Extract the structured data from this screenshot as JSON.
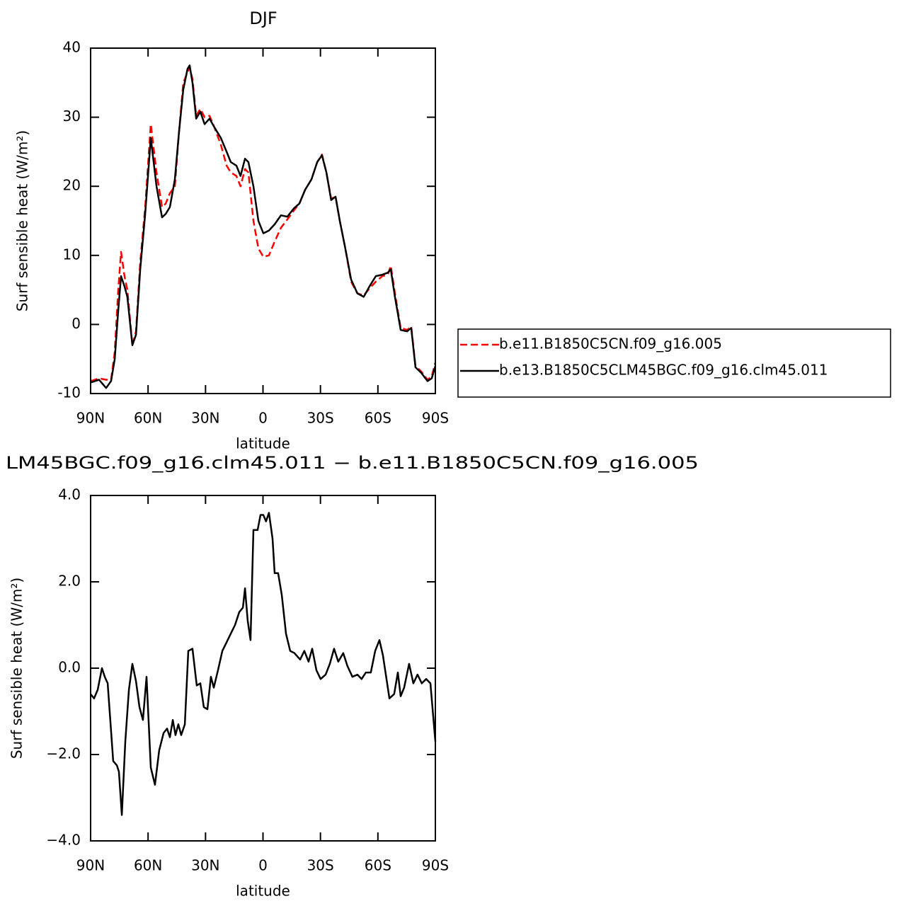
{
  "chart_data": [
    {
      "type": "line",
      "title": "DJF",
      "x_label": "latitude",
      "y_label": "Surf sensible heat (W/m²)",
      "x": [
        90,
        85.6,
        81.9,
        79.3,
        77.4,
        75.6,
        74.1,
        72.3,
        70.8,
        68.2,
        66.3,
        64.1,
        61.5,
        58.6,
        55.6,
        52.7,
        50.8,
        48.6,
        46,
        43.8,
        41.6,
        39.4,
        38.3,
        36.8,
        34.9,
        32.7,
        30.5,
        27.9,
        25.3,
        22,
        19,
        16.8,
        13.9,
        11.7,
        9.4,
        7.6,
        5,
        2.4,
        -0.2,
        -3.1,
        -6.1,
        -9.4,
        -12.7,
        -16.1,
        -19,
        -22,
        -25.3,
        -28.3,
        -30.8,
        -33.1,
        -35.6,
        -37.9,
        -40.1,
        -43,
        -46,
        -49.3,
        -52.6,
        -55.6,
        -58.9,
        -62.3,
        -65.2,
        -66.7,
        -68.9,
        -71.9,
        -75.2,
        -77.4,
        -79.6,
        -82.6,
        -85.9,
        -88.1,
        -90
      ],
      "xlim": [
        90,
        -90
      ],
      "xticks": [
        {
          "value": 90,
          "label": "90N"
        },
        {
          "value": 60,
          "label": "60N"
        },
        {
          "value": 30,
          "label": "30N"
        },
        0,
        {
          "value": -30,
          "label": "30S"
        },
        {
          "value": -60,
          "label": "60S"
        },
        {
          "value": -90,
          "label": "90S"
        }
      ],
      "ylim": [
        -10,
        40
      ],
      "yticks": [
        -10,
        0,
        10,
        20,
        30,
        40
      ],
      "legend": "right",
      "series": [
        {
          "name": "b.e11.B1850C5CN.f09_g16.005",
          "color": "#ff0000",
          "line_style": "dashed",
          "values": [
            -8.2,
            -7.8,
            -8.0,
            -8,
            -4,
            5,
            10.5,
            7,
            5,
            -3,
            -1,
            9,
            17,
            29,
            22,
            17,
            17.5,
            19,
            20,
            28,
            35,
            36.5,
            37.2,
            35.5,
            30.2,
            31.2,
            30,
            30.2,
            28.5,
            26,
            23,
            22,
            21.5,
            20,
            22.5,
            22,
            15,
            11,
            9.8,
            10,
            12,
            14,
            15.2,
            16.5,
            17.5,
            19.5,
            21,
            23.5,
            24.6,
            22,
            18.2,
            18.5,
            15,
            11,
            6.2,
            4.5,
            4.2,
            5.2,
            6.2,
            7,
            7.2,
            8.5,
            4.5,
            -0.5,
            -0.8,
            -0.3,
            -6,
            -6.8,
            -8,
            -7.5,
            -5.5
          ]
        },
        {
          "name": "b.e13.B1850C5CLM45BGC.f09_g16.clm45.011",
          "color": "#000000",
          "line_style": "solid",
          "values": [
            -8.4,
            -8.0,
            -9.2,
            -8.2,
            -5,
            2,
            7,
            5.5,
            4,
            -3,
            -1.5,
            8,
            16,
            27,
            20,
            15.5,
            16,
            17,
            21,
            28,
            34,
            37,
            37.5,
            35,
            29.8,
            30.8,
            29,
            29.8,
            28.5,
            27,
            25,
            23.5,
            23,
            21.5,
            24,
            23.5,
            20,
            15,
            13.2,
            13.6,
            14.5,
            15.8,
            15.6,
            16.8,
            17.5,
            19.5,
            21,
            23.5,
            24.5,
            22,
            18,
            18.5,
            15,
            11,
            6.5,
            4.5,
            4,
            5.5,
            7,
            7.2,
            7.5,
            8,
            4,
            -0.8,
            -1,
            -0.5,
            -6.2,
            -7,
            -8.2,
            -7.8,
            -6
          ]
        }
      ]
    },
    {
      "type": "line",
      "title": "LM45BGC.f09_g16.clm45.011 − b.e11.B1850C5CN.f09_g16.005",
      "x_label": "latitude",
      "y_label": "Surf sensible heat (W/m²)",
      "x": [
        90,
        88.2,
        86.3,
        84.1,
        82.6,
        81.1,
        78.2,
        76.3,
        75.2,
        73.7,
        71.9,
        70,
        68.2,
        66.3,
        64.5,
        62.7,
        60.8,
        58.6,
        56.4,
        54.2,
        51.9,
        50.1,
        48.6,
        47.1,
        45.7,
        44.2,
        42.7,
        40.8,
        39,
        36.8,
        34.6,
        32.7,
        30.9,
        29,
        27.2,
        25.7,
        23.5,
        21.2,
        19,
        16.8,
        14.6,
        12.4,
        10.5,
        9.4,
        8,
        6.5,
        5,
        2.8,
        1.3,
        -0.2,
        -1.6,
        -3.1,
        -5,
        -6.1,
        -7.9,
        -9.8,
        -12,
        -14.2,
        -16.4,
        -19.4,
        -21.6,
        -23.8,
        -25.7,
        -27.9,
        -30.1,
        -32.7,
        -34.9,
        -37.1,
        -39.3,
        -41.9,
        -44.1,
        -46.7,
        -49.3,
        -51.5,
        -53.7,
        -56.3,
        -58.6,
        -60.8,
        -62.6,
        -66,
        -68.5,
        -70.4,
        -71.9,
        -73.7,
        -76.3,
        -78.5,
        -80.7,
        -82.9,
        -85.2,
        -87.4,
        -90
      ],
      "values": [
        -0.6,
        -0.7,
        -0.5,
        0.0,
        -0.2,
        -0.35,
        -2.15,
        -2.25,
        -2.4,
        -3.4,
        -1.7,
        -0.5,
        0.1,
        -0.3,
        -0.9,
        -1.2,
        -0.2,
        -2.3,
        -2.7,
        -1.9,
        -1.5,
        -1.4,
        -1.6,
        -1.2,
        -1.55,
        -1.3,
        -1.55,
        -1.3,
        0.4,
        0.45,
        -0.4,
        -0.35,
        -0.9,
        -0.95,
        -0.2,
        -0.45,
        -0.05,
        0.4,
        0.6,
        0.8,
        1.0,
        1.3,
        1.4,
        1.85,
        1.1,
        0.65,
        3.2,
        3.2,
        3.55,
        3.55,
        3.4,
        3.6,
        3.0,
        2.2,
        2.2,
        1.7,
        0.8,
        0.4,
        0.35,
        0.2,
        0.4,
        0.15,
        0.45,
        -0.05,
        -0.25,
        -0.15,
        0.1,
        0.45,
        0.15,
        0.35,
        0.05,
        -0.2,
        -0.15,
        -0.25,
        -0.1,
        -0.1,
        0.4,
        0.65,
        0.3,
        -0.7,
        -0.6,
        -0.1,
        -0.65,
        -0.45,
        0.1,
        -0.35,
        -0.15,
        -0.35,
        -0.25,
        -0.35,
        -1.7
      ],
      "color": "#000000",
      "xlim": [
        90,
        -90
      ],
      "xticks": [
        {
          "value": 90,
          "label": "90N"
        },
        {
          "value": 60,
          "label": "60N"
        },
        {
          "value": 30,
          "label": "30N"
        },
        0,
        {
          "value": -30,
          "label": "30S"
        },
        {
          "value": -60,
          "label": "60S"
        },
        {
          "value": -90,
          "label": "90S"
        }
      ],
      "ylim": [
        -4,
        4
      ],
      "yticks": [
        {
          "value": -4,
          "label": "−4.0"
        },
        {
          "value": -2,
          "label": "−2.0"
        },
        {
          "value": 0,
          "label": "0.0"
        },
        {
          "value": 2,
          "label": "2.0"
        },
        {
          "value": 4,
          "label": "4.0"
        }
      ]
    }
  ]
}
